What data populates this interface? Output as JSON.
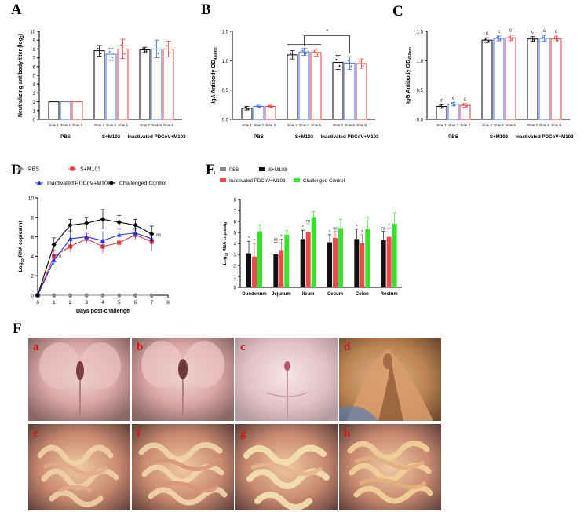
{
  "panel_letters": {
    "a": "A",
    "b": "B",
    "c": "C",
    "d": "D",
    "e": "E",
    "f": "F"
  },
  "colors": {
    "pbs": "#000000",
    "sm103": "#4169e1",
    "inactivated": "#e23a3a",
    "challenged": "#000000",
    "pbs_grey": "#8a8a8a",
    "green": "#37e22a",
    "e_sm103": "#111111",
    "e_inact": "#ef4a4a"
  },
  "chart_data": [
    {
      "id": "A",
      "type": "bar",
      "ylabel": "Neutralizing antibody titer (log2)",
      "ylim": [
        0,
        10
      ],
      "yticks": [
        "0",
        "1",
        "2",
        "3",
        "4",
        "5",
        "6",
        "7",
        "8",
        "9",
        "10"
      ],
      "categories": [
        "Sow 1",
        "Sow 2",
        "Sow 3",
        "Sow 4",
        "Sow 5",
        "Sow 6",
        "Sow 7",
        "Sow 8",
        "Sow 9"
      ],
      "values": [
        2,
        2,
        2,
        7.8,
        7.4,
        8.0,
        7.9,
        8.0,
        8.0
      ],
      "errors": [
        0,
        0,
        0,
        0.6,
        0.7,
        1.1,
        0.3,
        1.0,
        0.9
      ],
      "groups": [
        "PBS",
        "S+M103",
        "Inactivated PDCoV+M103"
      ]
    },
    {
      "id": "B",
      "type": "bar",
      "ylabel": "IgA Antibody OD450nm",
      "ylim": [
        0,
        1.5
      ],
      "yticks": [
        "0.0",
        "0.5",
        "1.0",
        "1.5"
      ],
      "categories": [
        "Sow 1",
        "Sow 2",
        "Sow 3",
        "Sow 4",
        "Sow 5",
        "Sow 6",
        "Sow 7",
        "Sow 8",
        "Sow 9"
      ],
      "values": [
        0.19,
        0.22,
        0.22,
        1.1,
        1.15,
        1.14,
        0.97,
        0.96,
        0.95
      ],
      "errors": [
        0.03,
        0.02,
        0.02,
        0.07,
        0.06,
        0.06,
        0.12,
        0.11,
        0.08
      ],
      "groups": [
        "PBS",
        "S+M103",
        "Inactivated PDCoV+M103"
      ],
      "annotation": "*"
    },
    {
      "id": "C",
      "type": "bar",
      "ylabel": "IgG Antibody OD450nm",
      "ylim": [
        0,
        1.5
      ],
      "yticks": [
        "0.0",
        "0.5",
        "1.0",
        "1.5"
      ],
      "categories": [
        "Sow 1",
        "Sow 2",
        "Sow 3",
        "Sow 4",
        "Sow 5",
        "Sow 6",
        "Sow 7",
        "Sow 8",
        "Sow 9"
      ],
      "values": [
        0.22,
        0.26,
        0.24,
        1.35,
        1.38,
        1.39,
        1.37,
        1.38,
        1.37
      ],
      "errors": [
        0.03,
        0.03,
        0.03,
        0.04,
        0.04,
        0.05,
        0.04,
        0.05,
        0.05
      ],
      "groups": [
        "PBS",
        "S+M103",
        "Inactivated PDCoV+M103"
      ],
      "bar_labels": [
        "c",
        "c",
        "c",
        "c",
        "c",
        "c",
        "c",
        "c",
        "c"
      ]
    },
    {
      "id": "D",
      "type": "line",
      "xlabel": "Days post-challenge",
      "ylabel": "Log10 RNA copies/ml",
      "xlim": [
        0,
        8
      ],
      "ylim": [
        0,
        10
      ],
      "xticks": [
        "0",
        "1",
        "2",
        "3",
        "4",
        "5",
        "6",
        "7",
        "8"
      ],
      "yticks": [
        "0",
        "2",
        "4",
        "6",
        "8",
        "10"
      ],
      "x": [
        0,
        1,
        2,
        3,
        4,
        5,
        6,
        7
      ],
      "series": [
        {
          "name": "PBS",
          "values": [
            0,
            0,
            0,
            0,
            0,
            0,
            0,
            0
          ],
          "errors": [
            0,
            0,
            0,
            0,
            0,
            0,
            0,
            0
          ],
          "marker": "circle"
        },
        {
          "name": "S+M103",
          "values": [
            0,
            4.0,
            5.0,
            5.8,
            5.0,
            5.4,
            6.2,
            5.5
          ],
          "errors": [
            0,
            0.6,
            0.6,
            0.5,
            0.7,
            0.7,
            0.5,
            1.0
          ],
          "marker": "square"
        },
        {
          "name": "Inactivated PDCoV+M103",
          "values": [
            0,
            3.6,
            5.8,
            6.0,
            5.6,
            6.2,
            6.4,
            5.8
          ],
          "errors": [
            0,
            0.5,
            0.8,
            0.5,
            0.9,
            0.6,
            0.5,
            0.7
          ],
          "marker": "triangle"
        },
        {
          "name": "Challenged Control",
          "values": [
            0,
            5.2,
            7.2,
            7.4,
            7.8,
            7.5,
            7.2,
            6.3
          ],
          "errors": [
            0,
            0.7,
            0.6,
            0.6,
            1.0,
            0.7,
            0.6,
            0.8
          ],
          "marker": "diamond"
        }
      ],
      "annotations": [
        "ns",
        "ns"
      ]
    },
    {
      "id": "E",
      "type": "bar",
      "ylabel": "Log10 RNA copies/g",
      "ylim": [
        0,
        8
      ],
      "yticks": [
        "0",
        "1",
        "2",
        "3",
        "4",
        "5",
        "6",
        "7",
        "8"
      ],
      "categories": [
        "Duodenum",
        "Jejunum",
        "Ileum",
        "Cecum",
        "Colon",
        "Rectum"
      ],
      "series": [
        {
          "name": "PBS",
          "values": [
            0,
            0,
            0,
            0,
            0,
            0
          ]
        },
        {
          "name": "S+M103",
          "values": [
            3.1,
            3.0,
            4.4,
            4.1,
            4.4,
            4.3
          ],
          "errors": [
            1.1,
            1.1,
            0.8,
            0.7,
            0.9,
            0.8
          ]
        },
        {
          "name": "Inactivated PDCoV+M103",
          "values": [
            2.8,
            3.4,
            5.0,
            4.5,
            4.0,
            4.6
          ],
          "errors": [
            1.2,
            1.0,
            0.8,
            0.6,
            0.8,
            0.8
          ]
        },
        {
          "name": "Challenged Control",
          "values": [
            5.1,
            4.8,
            6.4,
            5.4,
            5.3,
            5.8
          ],
          "errors": [
            0.6,
            0.4,
            0.5,
            0.8,
            1.1,
            1.0
          ]
        }
      ],
      "annotations": [
        "*",
        "*",
        "ns",
        "*",
        "*",
        "ns",
        "*",
        "ns",
        "*",
        "*",
        "ns",
        "*",
        "ns"
      ]
    }
  ],
  "photos": {
    "labels": [
      "a",
      "b",
      "c",
      "d",
      "e",
      "f",
      "g",
      "h"
    ]
  }
}
